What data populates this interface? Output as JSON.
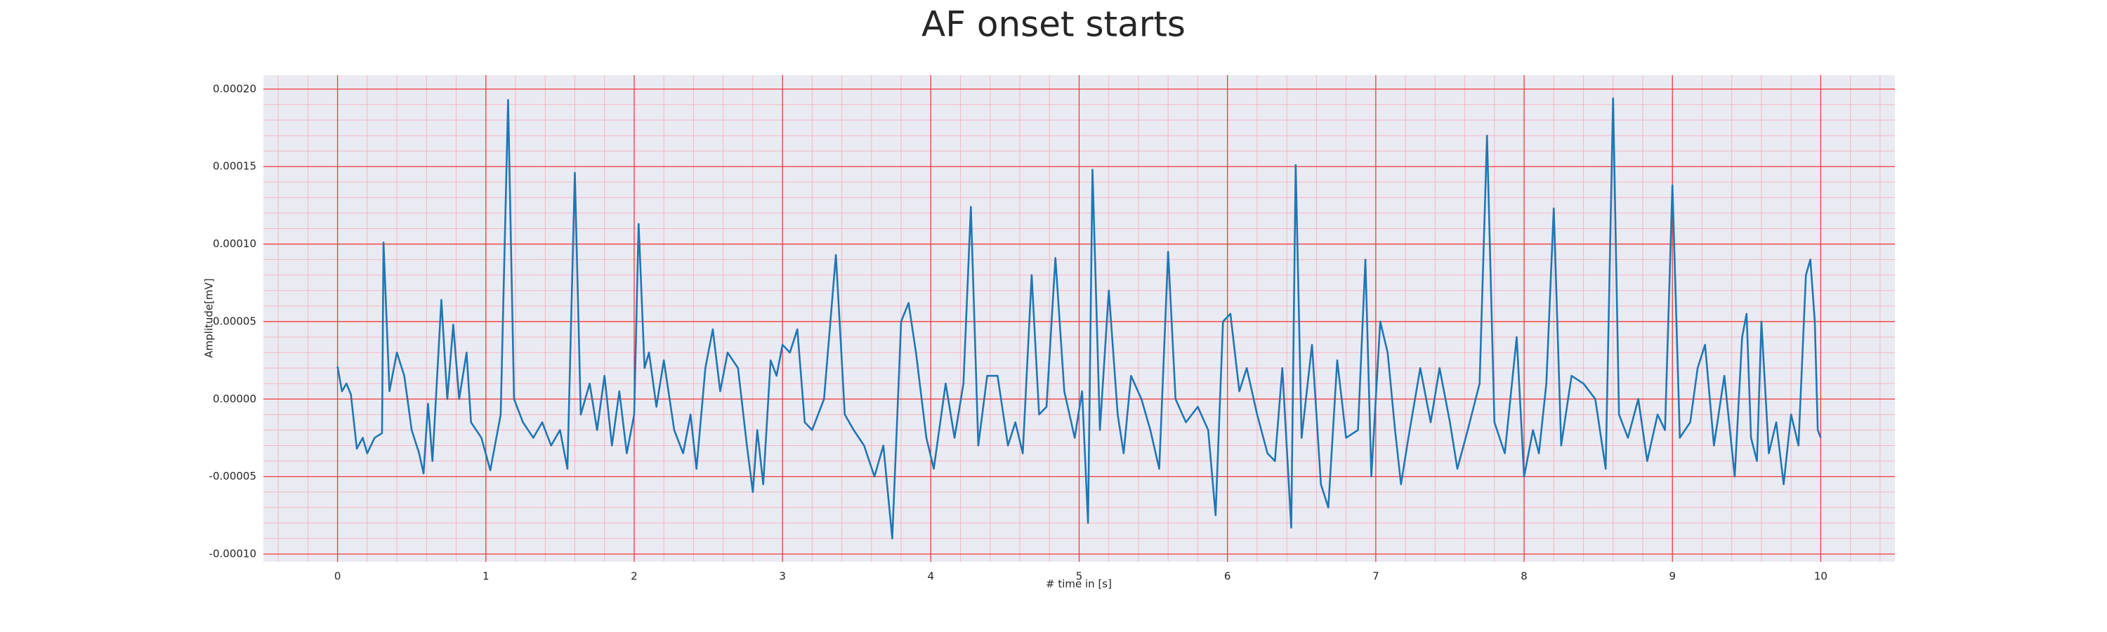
{
  "chart_data": {
    "type": "line",
    "title": "AF onset starts",
    "xlabel": "# time in [s]",
    "ylabel": "Amplitude[mV]",
    "color": "#1f77b4",
    "grid": true,
    "minor_grid": true,
    "xlim": [
      -0.5,
      10.5
    ],
    "ylim": [
      -0.000105,
      0.000209
    ],
    "xticks": [
      0,
      1,
      2,
      3,
      4,
      5,
      6,
      7,
      8,
      9,
      10
    ],
    "yticks": [
      {
        "value": -0.0001,
        "label": "-0.00010"
      },
      {
        "value": -5e-05,
        "label": "-0.00005"
      },
      {
        "value": 0,
        "label": "0.00000"
      },
      {
        "value": 5e-05,
        "label": "0.00005"
      },
      {
        "value": 0.0001,
        "label": "0.00010"
      },
      {
        "value": 0.00015,
        "label": "0.00015"
      },
      {
        "value": 0.0002,
        "label": "0.00020"
      }
    ],
    "x": [
      0,
      0.03,
      0.06,
      0.09,
      0.13,
      0.17,
      0.2,
      0.25,
      0.3,
      0.31,
      0.35,
      0.4,
      0.45,
      0.5,
      0.55,
      0.58,
      0.61,
      0.64,
      0.7,
      0.74,
      0.78,
      0.82,
      0.87,
      0.9,
      0.97,
      1.03,
      1.1,
      1.15,
      1.19,
      1.25,
      1.32,
      1.38,
      1.44,
      1.5,
      1.55,
      1.6,
      1.64,
      1.7,
      1.75,
      1.8,
      1.85,
      1.9,
      1.95,
      2.0,
      2.03,
      2.07,
      2.1,
      2.15,
      2.2,
      2.27,
      2.33,
      2.38,
      2.42,
      2.48,
      2.53,
      2.58,
      2.63,
      2.7,
      2.76,
      2.8,
      2.83,
      2.87,
      2.92,
      2.96,
      3.0,
      3.05,
      3.1,
      3.15,
      3.2,
      3.28,
      3.36,
      3.42,
      3.48,
      3.55,
      3.62,
      3.68,
      3.74,
      3.8,
      3.85,
      3.9,
      3.97,
      4.02,
      4.1,
      4.16,
      4.22,
      4.27,
      4.32,
      4.38,
      4.45,
      4.52,
      4.57,
      4.62,
      4.68,
      4.73,
      4.78,
      4.84,
      4.9,
      4.97,
      5.02,
      5.06,
      5.09,
      5.14,
      5.2,
      5.26,
      5.3,
      5.35,
      5.42,
      5.48,
      5.54,
      5.6,
      5.65,
      5.72,
      5.8,
      5.87,
      5.92,
      5.97,
      6.02,
      6.08,
      6.13,
      6.2,
      6.27,
      6.32,
      6.37,
      6.43,
      6.46,
      6.5,
      6.57,
      6.63,
      6.68,
      6.74,
      6.8,
      6.88,
      6.93,
      6.97,
      7.03,
      7.08,
      7.13,
      7.17,
      7.22,
      7.3,
      7.37,
      7.43,
      7.5,
      7.55,
      7.62,
      7.7,
      7.75,
      7.8,
      7.87,
      7.95,
      8.0,
      8.06,
      8.1,
      8.15,
      8.2,
      8.25,
      8.32,
      8.4,
      8.48,
      8.55,
      8.6,
      8.64,
      8.7,
      8.77,
      8.83,
      8.9,
      8.95,
      9.0,
      9.05,
      9.12,
      9.17,
      9.22,
      9.28,
      9.35,
      9.42,
      9.47,
      9.5,
      9.53,
      9.57,
      9.6,
      9.65,
      9.7,
      9.75,
      9.8,
      9.85,
      9.9,
      9.93,
      9.96,
      9.98,
      10.0
    ],
    "values": [
      2.1e-05,
      5e-06,
      1e-05,
      3e-06,
      -3.2e-05,
      -2.5e-05,
      -3.5e-05,
      -2.5e-05,
      -2.2e-05,
      0.000101,
      5e-06,
      3e-05,
      1.5e-05,
      -2e-05,
      -3.5e-05,
      -4.8e-05,
      -3e-06,
      -4e-05,
      6.4e-05,
      0,
      4.8e-05,
      0,
      3e-05,
      -1.5e-05,
      -2.5e-05,
      -4.6e-05,
      -1e-05,
      0.000193,
      0,
      -1.5e-05,
      -2.5e-05,
      -1.5e-05,
      -3e-05,
      -2e-05,
      -4.5e-05,
      0.000146,
      -1e-05,
      1e-05,
      -2e-05,
      1.5e-05,
      -3e-05,
      5e-06,
      -3.5e-05,
      -1e-05,
      0.000113,
      2e-05,
      3e-05,
      -5e-06,
      2.5e-05,
      -2e-05,
      -3.5e-05,
      -1e-05,
      -4.5e-05,
      2e-05,
      4.5e-05,
      5e-06,
      3e-05,
      2e-05,
      -3e-05,
      -6e-05,
      -2e-05,
      -5.5e-05,
      2.5e-05,
      1.5e-05,
      3.5e-05,
      3e-05,
      4.5e-05,
      -1.5e-05,
      -2e-05,
      0,
      9.3e-05,
      -1e-05,
      -2e-05,
      -3e-05,
      -5e-05,
      -3e-05,
      -9e-05,
      5e-05,
      6.2e-05,
      3e-05,
      -2.5e-05,
      -4.5e-05,
      1e-05,
      -2.5e-05,
      1e-05,
      0.000124,
      -3e-05,
      1.5e-05,
      1.5e-05,
      -3e-05,
      -1.5e-05,
      -3.5e-05,
      8e-05,
      -1e-05,
      -5e-06,
      9.1e-05,
      5e-06,
      -2.5e-05,
      5e-06,
      -8e-05,
      0.000148,
      -2e-05,
      7e-05,
      -1e-05,
      -3.5e-05,
      1.5e-05,
      0,
      -2e-05,
      -4.5e-05,
      9.5e-05,
      0,
      -1.5e-05,
      -5e-06,
      -2e-05,
      -7.5e-05,
      5e-05,
      5.5e-05,
      5e-06,
      2e-05,
      -1e-05,
      -3.5e-05,
      -4e-05,
      2e-05,
      -8.3e-05,
      0.000151,
      -2.5e-05,
      3.5e-05,
      -5.5e-05,
      -7e-05,
      2.5e-05,
      -2.5e-05,
      -2e-05,
      9e-05,
      -5e-05,
      5e-05,
      3e-05,
      -2e-05,
      -5.5e-05,
      -2.5e-05,
      2e-05,
      -1.5e-05,
      2e-05,
      -1.5e-05,
      -4.5e-05,
      -2e-05,
      1e-05,
      0.00017,
      -1.5e-05,
      -3.5e-05,
      4e-05,
      -5e-05,
      -2e-05,
      -3.5e-05,
      1e-05,
      0.000123,
      -3e-05,
      1.5e-05,
      1e-05,
      0,
      -4.5e-05,
      0.000194,
      -1e-05,
      -2.5e-05,
      0,
      -4e-05,
      -1e-05,
      -2e-05,
      0.000138,
      -2.5e-05,
      -1.5e-05,
      2e-05,
      3.5e-05,
      -3e-05,
      1.5e-05,
      -5e-05,
      4e-05,
      5.5e-05,
      -2.5e-05,
      -4e-05,
      5e-05,
      -3.5e-05,
      -1.5e-05,
      -5.5e-05,
      -1e-05,
      -3e-05,
      8e-05,
      9e-05,
      5e-05,
      -2e-05,
      -2.5e-05
    ]
  }
}
